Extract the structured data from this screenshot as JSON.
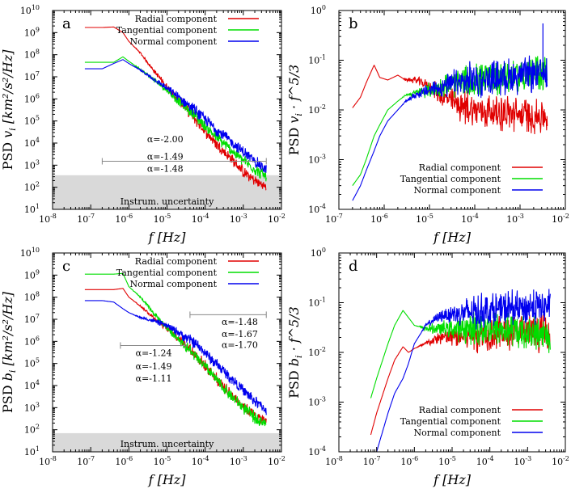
{
  "colors": {
    "radial": "#e00000",
    "tangential": "#00dd00",
    "normal": "#0000ee",
    "uncertainty_band": "#d9d9d9",
    "bracket": "#888888"
  },
  "chart_data": [
    {
      "type": "line",
      "panel_label": "a",
      "xscale": "log",
      "yscale": "log",
      "xlim": [
        1e-08,
        0.01
      ],
      "ylim": [
        10,
        10000000000.0
      ],
      "x_ticks": [
        1e-08,
        1e-07,
        1e-06,
        1e-05,
        0.0001,
        0.001,
        0.01
      ],
      "y_ticks": [
        10,
        100,
        1000,
        10000.0,
        100000.0,
        1000000.0,
        10000000.0,
        100000000.0,
        1000000000.0,
        10000000000.0
      ],
      "legend": {
        "position": "top-right",
        "entries": [
          "Radial component",
          "Tangential component",
          "Normal component"
        ]
      },
      "series": [
        {
          "name": "Radial component",
          "color_key": "radial",
          "x": [
            7e-08,
            1e-07,
            2e-07,
            4e-07,
            7e-07,
            1e-06,
            2e-06,
            5e-06,
            1e-05,
            2e-05,
            5e-05,
            0.0001,
            0.0002,
            0.0005,
            0.001,
            0.002,
            0.004
          ],
          "y": [
            1700000000.0,
            1700000000.0,
            1700000000.0,
            1800000000.0,
            1000000000.0,
            400000000.0,
            120000000.0,
            15000000.0,
            3500000.0,
            900000.0,
            150000.0,
            35000.0,
            9000.0,
            1800.0,
            500.0,
            200.0,
            100.0
          ]
        },
        {
          "name": "Tangential component",
          "color_key": "tangential",
          "x": [
            7e-08,
            1e-07,
            2e-07,
            4e-07,
            7e-07,
            1e-06,
            2e-06,
            5e-06,
            1e-05,
            2e-05,
            5e-05,
            0.0001,
            0.0002,
            0.0005,
            0.001,
            0.002,
            0.004
          ],
          "y": [
            45000000.0,
            45000000.0,
            45000000.0,
            45000000.0,
            80000000.0,
            50000000.0,
            22000000.0,
            6500000.0,
            2500000.0,
            800000.0,
            200000.0,
            60000.0,
            18000.0,
            4500.0,
            1600.0,
            650.0,
            300.0
          ]
        },
        {
          "name": "Normal component",
          "color_key": "normal",
          "x": [
            7e-08,
            1e-07,
            2e-07,
            4e-07,
            7e-07,
            1e-06,
            2e-06,
            5e-06,
            1e-05,
            2e-05,
            5e-05,
            0.0001,
            0.0002,
            0.0005,
            0.001,
            0.002,
            0.004
          ],
          "y": [
            23000000.0,
            23000000.0,
            23000000.0,
            40000000.0,
            60000000.0,
            40000000.0,
            20000000.0,
            7000000.0,
            3000000.0,
            1200000.0,
            350000.0,
            120000.0,
            40000.0,
            11000.0,
            4000.0,
            1500.0,
            600.0
          ]
        }
      ],
      "band": {
        "y0": 10,
        "y1": 350,
        "label": "Instrum. uncertainty"
      },
      "brackets": [
        {
          "x0": 2e-07,
          "x1": 0.004,
          "y": 1500
        }
      ],
      "annotations": [
        {
          "text": "α=-2.00",
          "color_key": "radial",
          "x": 3e-06,
          "y": 11000.0
        },
        {
          "text": "α=-1.49",
          "color_key": "tangential",
          "x": 3e-06,
          "y": 1800.0
        },
        {
          "text": "α=-1.48",
          "color_key": "normal",
          "x": 3e-06,
          "y": 500.0
        }
      ],
      "ylabel_prefix": "PSD ",
      "ylabel_var": "v",
      "ylabel_sub": "i",
      "ylabel_units": " [km²/s²/Hz]",
      "xlabel_var": "f",
      "xlabel_units": " [Hz]",
      "noise": 0.22
    },
    {
      "type": "line",
      "panel_label": "b",
      "xscale": "log",
      "yscale": "log",
      "xlim": [
        1e-07,
        0.01
      ],
      "ylim": [
        0.0001,
        1
      ],
      "x_ticks": [
        1e-07,
        1e-06,
        1e-05,
        0.0001,
        0.001,
        0.01
      ],
      "y_ticks": [
        0.0001,
        0.001,
        0.01,
        0.1,
        1
      ],
      "legend": {
        "position": "bottom-right",
        "entries": [
          "Radial component",
          "Tangential component",
          "Normal component"
        ]
      },
      "series": [
        {
          "name": "Radial component",
          "color_key": "radial",
          "x": [
            2e-07,
            3e-07,
            4e-07,
            6e-07,
            8e-07,
            1.2e-06,
            2e-06,
            3e-06,
            5e-06,
            1e-05,
            2e-05,
            5e-05,
            0.0001,
            0.0003,
            0.001,
            0.004
          ],
          "y": [
            0.011,
            0.018,
            0.035,
            0.08,
            0.045,
            0.04,
            0.05,
            0.04,
            0.04,
            0.03,
            0.018,
            0.012,
            0.01,
            0.009,
            0.008,
            0.007
          ]
        },
        {
          "name": "Tangential component",
          "color_key": "tangential",
          "x": [
            2e-07,
            3e-07,
            4e-07,
            6e-07,
            8e-07,
            1.2e-06,
            2e-06,
            3e-06,
            5e-06,
            1e-05,
            2e-05,
            5e-05,
            0.0001,
            0.0003,
            0.001,
            0.004
          ],
          "y": [
            0.0003,
            0.0005,
            0.001,
            0.003,
            0.005,
            0.01,
            0.015,
            0.02,
            0.022,
            0.025,
            0.03,
            0.035,
            0.04,
            0.045,
            0.05,
            0.06
          ]
        },
        {
          "name": "Normal component",
          "color_key": "normal",
          "x": [
            2e-07,
            3e-07,
            4e-07,
            6e-07,
            8e-07,
            1.2e-06,
            2e-06,
            3e-06,
            5e-06,
            1e-05,
            2e-05,
            5e-05,
            0.0001,
            0.0003,
            0.001,
            0.004
          ],
          "y": [
            0.00015,
            0.0003,
            0.0006,
            0.0015,
            0.003,
            0.006,
            0.01,
            0.015,
            0.02,
            0.025,
            0.03,
            0.035,
            0.04,
            0.045,
            0.05,
            0.055
          ]
        }
      ],
      "spikes": [
        {
          "x": 0.0032,
          "y": 0.55,
          "color_key": "normal"
        }
      ],
      "ylabel_prefix": "PSD ",
      "ylabel_var": "v",
      "ylabel_sub": "i",
      "ylabel_units": " · f^5/3",
      "xlabel_var": "f",
      "xlabel_units": " [Hz]",
      "noise": 0.3
    },
    {
      "type": "line",
      "panel_label": "c",
      "xscale": "log",
      "yscale": "log",
      "xlim": [
        1e-08,
        0.01
      ],
      "ylim": [
        10,
        10000000000.0
      ],
      "x_ticks": [
        1e-08,
        1e-07,
        1e-06,
        1e-05,
        0.0001,
        0.001,
        0.01
      ],
      "y_ticks": [
        10,
        100,
        1000,
        10000.0,
        100000.0,
        1000000.0,
        10000000.0,
        100000000.0,
        1000000000.0,
        10000000000.0
      ],
      "legend": {
        "position": "top-right",
        "entries": [
          "Radial component",
          "Tangential component",
          "Normal component"
        ]
      },
      "series": [
        {
          "name": "Radial component",
          "color_key": "radial",
          "x": [
            7e-08,
            1e-07,
            2e-07,
            4e-07,
            7e-07,
            1e-06,
            2e-06,
            5e-06,
            1e-05,
            2e-05,
            5e-05,
            0.0001,
            0.0002,
            0.0005,
            0.001,
            0.002,
            0.004
          ],
          "y": [
            220000000.0,
            220000000.0,
            220000000.0,
            220000000.0,
            250000000.0,
            100000000.0,
            40000000.0,
            10000000.0,
            4000000.0,
            1500000.0,
            300000.0,
            80000.0,
            20000.0,
            3500.0,
            1200.0,
            400.0,
            250.0
          ]
        },
        {
          "name": "Tangential component",
          "color_key": "tangential",
          "x": [
            7e-08,
            1e-07,
            2e-07,
            4e-07,
            7e-07,
            1e-06,
            2e-06,
            5e-06,
            1e-05,
            2e-05,
            5e-05,
            0.0001,
            0.0002,
            0.0005,
            0.001,
            0.002,
            0.004
          ],
          "y": [
            1100000000.0,
            1100000000.0,
            1100000000.0,
            1100000000.0,
            1200000000.0,
            300000000.0,
            100000000.0,
            15000000.0,
            4000000.0,
            1300000.0,
            250000.0,
            70000.0,
            18000.0,
            3000.0,
            1000.0,
            350.0,
            200.0
          ]
        },
        {
          "name": "Normal component",
          "color_key": "normal",
          "x": [
            7e-08,
            1e-07,
            2e-07,
            4e-07,
            7e-07,
            1e-06,
            2e-06,
            5e-06,
            1e-05,
            2e-05,
            5e-05,
            0.0001,
            0.0002,
            0.0005,
            0.001,
            0.002,
            0.004
          ],
          "y": [
            70000000.0,
            70000000.0,
            70000000.0,
            60000000.0,
            30000000.0,
            20000000.0,
            12000000.0,
            8000000.0,
            5000000.0,
            2500000.0,
            900000.0,
            300000.0,
            90000.0,
            20000.0,
            6000.0,
            2000.0,
            800.0
          ]
        }
      ],
      "band": {
        "y0": 10,
        "y1": 70,
        "label": "Instrum. uncertainty"
      },
      "brackets": [
        {
          "x0": 6e-07,
          "x1": 3e-05,
          "y": 650000.0
        },
        {
          "x0": 4e-05,
          "x1": 0.004,
          "y": 16000000.0
        }
      ],
      "annotations": [
        {
          "text": "α=-1.24",
          "color_key": "radial",
          "x": 1.5e-06,
          "y": 220000.0
        },
        {
          "text": "α=-1.49",
          "color_key": "tangential",
          "x": 1.5e-06,
          "y": 55000.0
        },
        {
          "text": "α=-1.11",
          "color_key": "normal",
          "x": 1.5e-06,
          "y": 15000.0
        },
        {
          "text": "α=-1.48",
          "color_key": "radial",
          "x": 0.00027,
          "y": 5500000.0
        },
        {
          "text": "α=-1.67",
          "color_key": "tangential",
          "x": 0.00027,
          "y": 1600000.0
        },
        {
          "text": "α=-1.70",
          "color_key": "normal",
          "x": 0.00027,
          "y": 500000.0
        }
      ],
      "ylabel_prefix": "PSD ",
      "ylabel_var": "b",
      "ylabel_sub": "i",
      "ylabel_units": " [km²/s²/Hz]",
      "xlabel_var": "f",
      "xlabel_units": " [Hz]",
      "noise": 0.22
    },
    {
      "type": "line",
      "panel_label": "d",
      "xscale": "log",
      "yscale": "log",
      "xlim": [
        1e-08,
        0.01
      ],
      "ylim": [
        0.0001,
        1
      ],
      "x_ticks": [
        1e-08,
        1e-07,
        1e-06,
        1e-05,
        0.0001,
        0.001,
        0.01
      ],
      "y_ticks": [
        0.0001,
        0.001,
        0.01,
        0.1,
        1
      ],
      "legend": {
        "position": "bottom-right",
        "entries": [
          "Radial component",
          "Tangential component",
          "Normal component"
        ]
      },
      "series": [
        {
          "name": "Radial component",
          "color_key": "radial",
          "x": [
            7e-08,
            1e-07,
            2e-07,
            3e-07,
            5e-07,
            7e-07,
            1e-06,
            2e-06,
            5e-06,
            1e-05,
            3e-05,
            0.0001,
            0.0003,
            0.001,
            0.004
          ],
          "y": [
            0.00022,
            0.0006,
            0.003,
            0.007,
            0.013,
            0.01,
            0.012,
            0.015,
            0.02,
            0.02,
            0.022,
            0.025,
            0.025,
            0.025,
            0.025
          ]
        },
        {
          "name": "Tangential component",
          "color_key": "tangential",
          "x": [
            7e-08,
            1e-07,
            2e-07,
            3e-07,
            5e-07,
            7e-07,
            1e-06,
            2e-06,
            5e-06,
            1e-05,
            3e-05,
            0.0001,
            0.0003,
            0.001,
            0.004
          ],
          "y": [
            0.0012,
            0.003,
            0.015,
            0.035,
            0.07,
            0.05,
            0.035,
            0.03,
            0.03,
            0.03,
            0.03,
            0.03,
            0.028,
            0.025,
            0.022
          ]
        },
        {
          "name": "Normal component",
          "color_key": "normal",
          "x": [
            1e-07,
            2e-07,
            3e-07,
            5e-07,
            7e-07,
            1e-06,
            2e-06,
            5e-06,
            1e-05,
            3e-05,
            0.0001,
            0.0003,
            0.001,
            0.004
          ],
          "y": [
            0.0001,
            0.0006,
            0.0015,
            0.003,
            0.006,
            0.015,
            0.035,
            0.055,
            0.06,
            0.065,
            0.07,
            0.075,
            0.08,
            0.085
          ]
        }
      ],
      "ylabel_prefix": "PSD ",
      "ylabel_var": "b",
      "ylabel_sub": "i",
      "ylabel_units": " · f^5/3",
      "xlabel_var": "f",
      "xlabel_units": " [Hz]",
      "noise": 0.3
    }
  ]
}
